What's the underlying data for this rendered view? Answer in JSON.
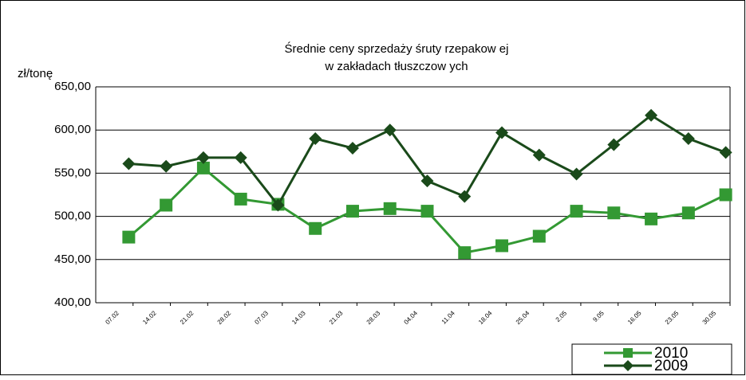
{
  "chart_data": {
    "type": "line",
    "title": [
      "Średnie ceny sprzedaży śruty rzepakow ej",
      "w  zakładach tłuszczow ych"
    ],
    "y_label": "zł/tonę",
    "categories": [
      "07.02",
      "14.02",
      "21.02",
      "28.02",
      "07.03",
      "14.03",
      "21.03",
      "28.03",
      "04.04",
      "11.04",
      "18.04",
      "25.04",
      "2.05",
      "9.05",
      "16.05",
      "23.05",
      "30.05"
    ],
    "series": [
      {
        "name": "2010",
        "color": "#339933",
        "marker": "square",
        "values": [
          476,
          513,
          556,
          520,
          514,
          486,
          506,
          509,
          506,
          458,
          466,
          477,
          506,
          504,
          497,
          504,
          525
        ]
      },
      {
        "name": "2009",
        "color": "#1a4a1a",
        "marker": "diamond",
        "values": [
          561,
          558,
          568,
          568,
          513,
          590,
          579,
          600,
          541,
          523,
          597,
          571,
          549,
          583,
          617,
          590,
          574
        ]
      }
    ],
    "ylim": [
      400,
      650
    ],
    "yticks": [
      {
        "value": 400,
        "label": "400,00"
      },
      {
        "value": 450,
        "label": "450,00"
      },
      {
        "value": 500,
        "label": "500,00"
      },
      {
        "value": 550,
        "label": "550,00"
      },
      {
        "value": 600,
        "label": "600,00"
      },
      {
        "value": 650,
        "label": "650,00"
      }
    ],
    "grid": true,
    "legend": "lower right"
  }
}
